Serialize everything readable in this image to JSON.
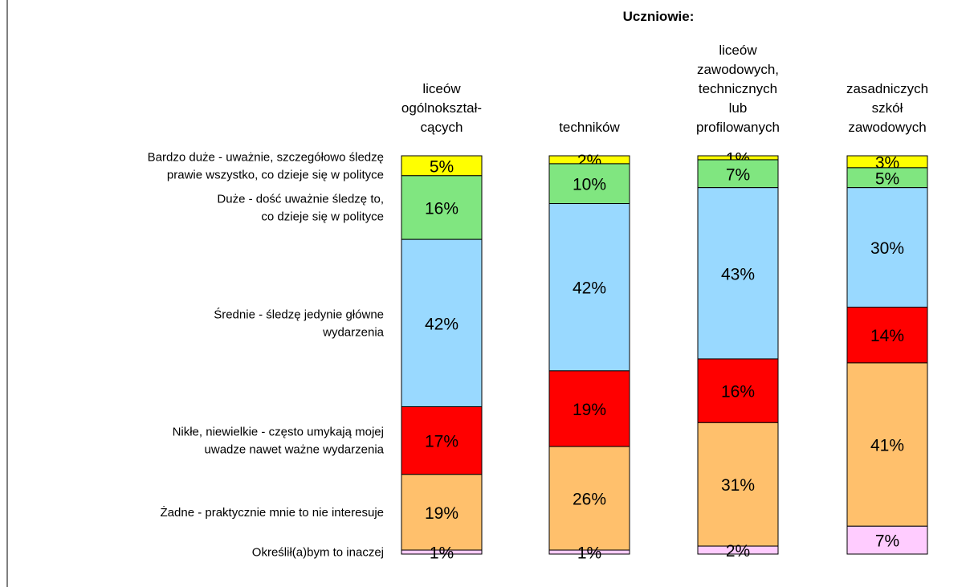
{
  "chart_data": {
    "type": "stacked-bar",
    "title": "Uczniowie:",
    "categories": [
      "liceów\nogólnokształ-\ncących",
      "techników",
      "liceów\nzawodowych,\ntechnicznych\nlub\nprofilowanych",
      "zasadniczych\nszkół\nzawodowych"
    ],
    "ylim": [
      0,
      100
    ],
    "series": [
      {
        "name": "Bardzo duże - uważnie, szczegółowo  śledzę\nprawie wszystko, co dzieje się w polityce",
        "color": "#ffff00",
        "values": [
          5,
          2,
          1,
          3
        ],
        "value_labels": [
          "5%",
          "2%",
          "1%",
          "3%"
        ]
      },
      {
        "name": "Duże - dość uważnie śledzę to,\nco dzieje się w polityce",
        "color": "#80e680",
        "values": [
          16,
          10,
          7,
          5
        ],
        "value_labels": [
          "16%",
          "10%",
          "7%",
          "5%"
        ]
      },
      {
        "name": "Średnie - śledzę jedynie główne\nwydarzenia",
        "color": "#99d9ff",
        "values": [
          42,
          42,
          43,
          30
        ],
        "value_labels": [
          "42%",
          "42%",
          "43%",
          "30%"
        ]
      },
      {
        "name": "Nikłe, niewielkie - często umykają mojej\nuwadze nawet ważne wydarzenia",
        "color": "#ff0000",
        "values": [
          17,
          19,
          16,
          14
        ],
        "value_labels": [
          "17%",
          "19%",
          "16%",
          "14%"
        ]
      },
      {
        "name": "Żadne - praktycznie mnie to nie interesuje",
        "color": "#ffc06c",
        "values": [
          19,
          26,
          31,
          41
        ],
        "value_labels": [
          "19%",
          "26%",
          "31%",
          "41%"
        ]
      },
      {
        "name": "Określił(a)bym to inaczej",
        "color": "#ffccff",
        "values": [
          1,
          1,
          2,
          7
        ],
        "value_labels": [
          "1%",
          "1%",
          "2%",
          "7%"
        ]
      }
    ]
  }
}
